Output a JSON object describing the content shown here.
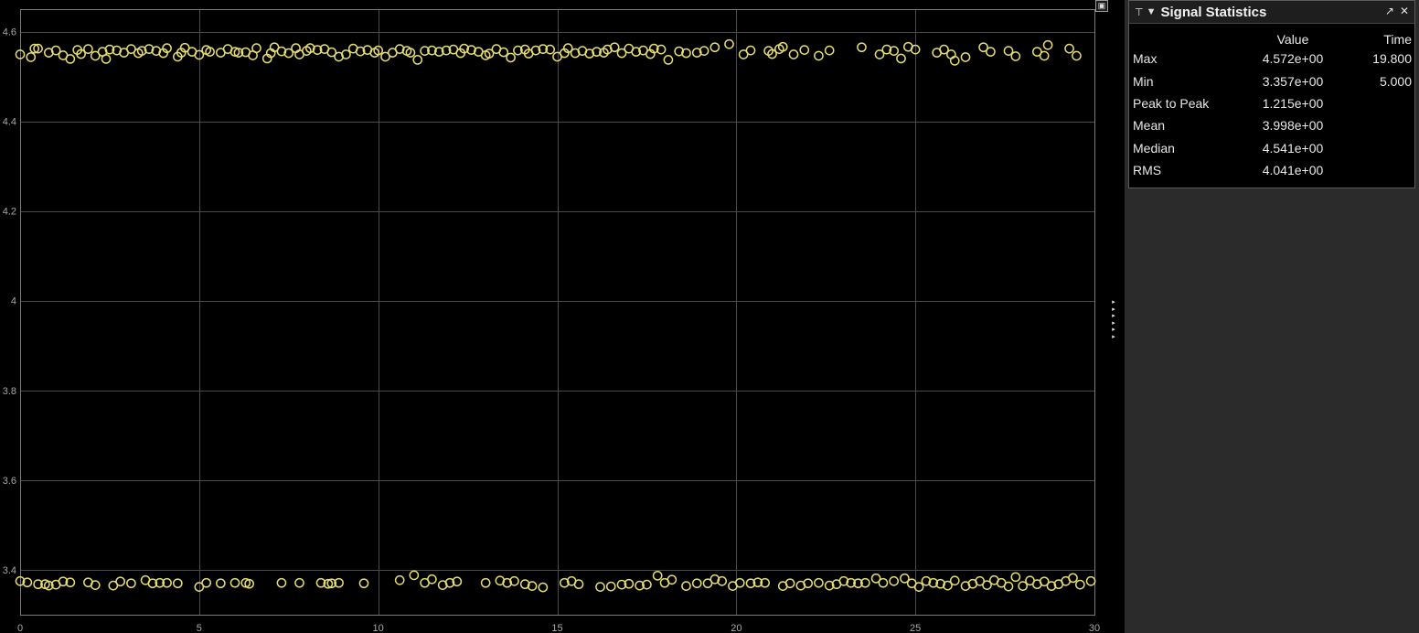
{
  "chart_data": {
    "type": "scatter",
    "title": "",
    "xlabel": "",
    "ylabel": "",
    "xlim": [
      0,
      30
    ],
    "ylim": [
      3.3,
      4.65
    ],
    "x_ticks": [
      0,
      5,
      10,
      15,
      20,
      25,
      30
    ],
    "x_tick_labels": [
      "0",
      "5",
      "10",
      "15",
      "20",
      "25",
      "30"
    ],
    "y_ticks": [
      3.4,
      3.6,
      3.8,
      4.0,
      4.2,
      4.4,
      4.6
    ],
    "y_tick_labels": [
      "3.4",
      "3.6",
      "3.8",
      "4",
      "4.2",
      "4.4",
      "4.6"
    ],
    "grid": true,
    "marker": "open-circle",
    "marker_color": "#e6dc74",
    "background": "#000000",
    "series": [
      {
        "points": [
          [
            0.0,
            4.549
          ],
          [
            0.3,
            4.543
          ],
          [
            0.4,
            4.562
          ],
          [
            0.5,
            4.562
          ],
          [
            0.8,
            4.553
          ],
          [
            1.0,
            4.558
          ],
          [
            1.2,
            4.547
          ],
          [
            1.4,
            4.539
          ],
          [
            1.6,
            4.559
          ],
          [
            1.7,
            4.55
          ],
          [
            1.9,
            4.561
          ],
          [
            2.1,
            4.546
          ],
          [
            2.3,
            4.555
          ],
          [
            2.4,
            4.539
          ],
          [
            2.5,
            4.56
          ],
          [
            2.7,
            4.558
          ],
          [
            2.9,
            4.553
          ],
          [
            3.1,
            4.561
          ],
          [
            3.3,
            4.552
          ],
          [
            3.4,
            4.557
          ],
          [
            3.6,
            4.561
          ],
          [
            3.8,
            4.557
          ],
          [
            4.0,
            4.552
          ],
          [
            4.1,
            4.563
          ],
          [
            4.4,
            4.544
          ],
          [
            4.5,
            4.553
          ],
          [
            4.6,
            4.564
          ],
          [
            4.8,
            4.555
          ],
          [
            5.0,
            4.548
          ],
          [
            5.2,
            4.559
          ],
          [
            5.3,
            4.555
          ],
          [
            5.6,
            4.553
          ],
          [
            5.8,
            4.561
          ],
          [
            6.0,
            4.555
          ],
          [
            6.1,
            4.553
          ],
          [
            6.3,
            4.554
          ],
          [
            6.5,
            4.547
          ],
          [
            6.6,
            4.563
          ],
          [
            6.9,
            4.54
          ],
          [
            7.0,
            4.552
          ],
          [
            7.1,
            4.565
          ],
          [
            7.3,
            4.556
          ],
          [
            7.5,
            4.552
          ],
          [
            7.7,
            4.563
          ],
          [
            7.8,
            4.549
          ],
          [
            8.0,
            4.557
          ],
          [
            8.1,
            4.563
          ],
          [
            8.3,
            4.559
          ],
          [
            8.5,
            4.561
          ],
          [
            8.7,
            4.554
          ],
          [
            8.9,
            4.544
          ],
          [
            9.1,
            4.549
          ],
          [
            9.3,
            4.562
          ],
          [
            9.5,
            4.556
          ],
          [
            9.7,
            4.559
          ],
          [
            9.9,
            4.553
          ],
          [
            10.0,
            4.558
          ],
          [
            10.2,
            4.544
          ],
          [
            10.4,
            4.553
          ],
          [
            10.6,
            4.561
          ],
          [
            10.8,
            4.557
          ],
          [
            10.9,
            4.553
          ],
          [
            11.1,
            4.537
          ],
          [
            11.3,
            4.557
          ],
          [
            11.5,
            4.558
          ],
          [
            11.7,
            4.555
          ],
          [
            11.9,
            4.558
          ],
          [
            12.1,
            4.56
          ],
          [
            12.3,
            4.552
          ],
          [
            12.4,
            4.562
          ],
          [
            12.6,
            4.559
          ],
          [
            12.8,
            4.555
          ],
          [
            13.0,
            4.547
          ],
          [
            13.1,
            4.551
          ],
          [
            13.3,
            4.561
          ],
          [
            13.5,
            4.554
          ],
          [
            13.7,
            4.542
          ],
          [
            13.9,
            4.558
          ],
          [
            14.1,
            4.56
          ],
          [
            14.2,
            4.551
          ],
          [
            14.4,
            4.558
          ],
          [
            14.6,
            4.561
          ],
          [
            14.8,
            4.56
          ],
          [
            15.0,
            4.544
          ],
          [
            15.2,
            4.552
          ],
          [
            15.3,
            4.563
          ],
          [
            15.5,
            4.552
          ],
          [
            15.7,
            4.557
          ],
          [
            15.9,
            4.551
          ],
          [
            16.1,
            4.555
          ],
          [
            16.3,
            4.553
          ],
          [
            16.4,
            4.56
          ],
          [
            16.6,
            4.565
          ],
          [
            16.8,
            4.552
          ],
          [
            17.0,
            4.562
          ],
          [
            17.2,
            4.555
          ],
          [
            17.4,
            4.558
          ],
          [
            17.6,
            4.55
          ],
          [
            17.7,
            4.562
          ],
          [
            17.9,
            4.56
          ],
          [
            18.1,
            4.537
          ],
          [
            18.4,
            4.556
          ],
          [
            18.6,
            4.552
          ],
          [
            18.9,
            4.553
          ],
          [
            19.1,
            4.557
          ],
          [
            19.4,
            4.565
          ],
          [
            19.8,
            4.572
          ],
          [
            20.2,
            4.549
          ],
          [
            20.4,
            4.558
          ],
          [
            20.9,
            4.557
          ],
          [
            21.0,
            4.55
          ],
          [
            21.2,
            4.561
          ],
          [
            21.3,
            4.566
          ],
          [
            21.6,
            4.549
          ],
          [
            21.9,
            4.559
          ],
          [
            22.3,
            4.546
          ],
          [
            22.6,
            4.558
          ],
          [
            23.5,
            4.565
          ],
          [
            24.0,
            4.549
          ],
          [
            24.2,
            4.56
          ],
          [
            24.4,
            4.557
          ],
          [
            24.6,
            4.54
          ],
          [
            24.8,
            4.566
          ],
          [
            25.0,
            4.56
          ],
          [
            25.6,
            4.553
          ],
          [
            25.8,
            4.56
          ],
          [
            26.0,
            4.549
          ],
          [
            26.1,
            4.535
          ],
          [
            26.4,
            4.543
          ],
          [
            26.9,
            4.565
          ],
          [
            27.1,
            4.555
          ],
          [
            27.6,
            4.557
          ],
          [
            27.8,
            4.545
          ],
          [
            28.4,
            4.555
          ],
          [
            28.6,
            4.546
          ],
          [
            28.7,
            4.57
          ],
          [
            29.3,
            4.562
          ],
          [
            29.5,
            4.546
          ],
          [
            0.0,
            3.375
          ],
          [
            0.2,
            3.372
          ],
          [
            0.5,
            3.368
          ],
          [
            0.7,
            3.368
          ],
          [
            0.8,
            3.365
          ],
          [
            1.0,
            3.367
          ],
          [
            1.2,
            3.374
          ],
          [
            1.4,
            3.372
          ],
          [
            1.9,
            3.372
          ],
          [
            2.1,
            3.366
          ],
          [
            2.6,
            3.365
          ],
          [
            2.8,
            3.374
          ],
          [
            3.1,
            3.37
          ],
          [
            3.5,
            3.377
          ],
          [
            3.7,
            3.37
          ],
          [
            3.9,
            3.371
          ],
          [
            4.1,
            3.371
          ],
          [
            4.4,
            3.37
          ],
          [
            5.0,
            3.362
          ],
          [
            5.2,
            3.371
          ],
          [
            5.6,
            3.37
          ],
          [
            6.0,
            3.371
          ],
          [
            6.3,
            3.371
          ],
          [
            6.4,
            3.369
          ],
          [
            7.3,
            3.371
          ],
          [
            7.8,
            3.371
          ],
          [
            8.4,
            3.371
          ],
          [
            8.6,
            3.369
          ],
          [
            8.7,
            3.37
          ],
          [
            8.9,
            3.371
          ],
          [
            9.6,
            3.37
          ],
          [
            10.6,
            3.377
          ],
          [
            11.0,
            3.388
          ],
          [
            11.3,
            3.371
          ],
          [
            11.5,
            3.379
          ],
          [
            11.8,
            3.366
          ],
          [
            12.0,
            3.371
          ],
          [
            12.2,
            3.374
          ],
          [
            13.0,
            3.371
          ],
          [
            13.4,
            3.376
          ],
          [
            13.6,
            3.371
          ],
          [
            13.8,
            3.375
          ],
          [
            14.1,
            3.368
          ],
          [
            14.3,
            3.364
          ],
          [
            14.6,
            3.361
          ],
          [
            15.2,
            3.371
          ],
          [
            15.4,
            3.375
          ],
          [
            15.6,
            3.368
          ],
          [
            16.2,
            3.362
          ],
          [
            16.5,
            3.363
          ],
          [
            16.8,
            3.367
          ],
          [
            17.0,
            3.369
          ],
          [
            17.3,
            3.365
          ],
          [
            17.5,
            3.367
          ],
          [
            17.8,
            3.387
          ],
          [
            18.0,
            3.371
          ],
          [
            18.2,
            3.378
          ],
          [
            18.6,
            3.364
          ],
          [
            18.9,
            3.37
          ],
          [
            19.2,
            3.37
          ],
          [
            19.4,
            3.379
          ],
          [
            19.6,
            3.375
          ],
          [
            19.9,
            3.364
          ],
          [
            20.1,
            3.371
          ],
          [
            20.4,
            3.37
          ],
          [
            20.6,
            3.372
          ],
          [
            20.8,
            3.371
          ],
          [
            21.3,
            3.364
          ],
          [
            21.5,
            3.37
          ],
          [
            21.8,
            3.365
          ],
          [
            22.0,
            3.37
          ],
          [
            22.3,
            3.371
          ],
          [
            22.6,
            3.365
          ],
          [
            22.8,
            3.368
          ],
          [
            23.0,
            3.375
          ],
          [
            23.2,
            3.371
          ],
          [
            23.4,
            3.37
          ],
          [
            23.6,
            3.371
          ],
          [
            23.9,
            3.381
          ],
          [
            24.1,
            3.371
          ],
          [
            24.4,
            3.375
          ],
          [
            24.7,
            3.381
          ],
          [
            24.9,
            3.37
          ],
          [
            25.1,
            3.362
          ],
          [
            25.3,
            3.375
          ],
          [
            25.5,
            3.371
          ],
          [
            25.7,
            3.369
          ],
          [
            25.9,
            3.365
          ],
          [
            26.1,
            3.376
          ],
          [
            26.4,
            3.364
          ],
          [
            26.6,
            3.369
          ],
          [
            26.8,
            3.375
          ],
          [
            27.0,
            3.366
          ],
          [
            27.2,
            3.377
          ],
          [
            27.4,
            3.371
          ],
          [
            27.6,
            3.363
          ],
          [
            27.8,
            3.384
          ],
          [
            28.0,
            3.364
          ],
          [
            28.2,
            3.376
          ],
          [
            28.4,
            3.368
          ],
          [
            28.6,
            3.374
          ],
          [
            28.8,
            3.364
          ],
          [
            29.0,
            3.368
          ],
          [
            29.2,
            3.375
          ],
          [
            29.4,
            3.382
          ],
          [
            29.6,
            3.367
          ],
          [
            29.9,
            3.375
          ]
        ]
      }
    ]
  },
  "stats_panel": {
    "title": "Signal Statistics",
    "columns": {
      "name": "",
      "value": "Value",
      "time": "Time"
    },
    "rows": [
      {
        "name": "Max",
        "value": "4.572e+00",
        "time": "19.800"
      },
      {
        "name": "Min",
        "value": "3.357e+00",
        "time": "5.000"
      },
      {
        "name": "Peak to Peak",
        "value": "1.215e+00",
        "time": ""
      },
      {
        "name": "Mean",
        "value": "3.998e+00",
        "time": ""
      },
      {
        "name": "Median",
        "value": "4.541e+00",
        "time": ""
      },
      {
        "name": "RMS",
        "value": "4.041e+00",
        "time": ""
      }
    ],
    "icons": {
      "pin": "pin-icon",
      "menu": "dropdown-triangle-icon",
      "undock": "undock-icon",
      "close": "close-icon"
    }
  }
}
